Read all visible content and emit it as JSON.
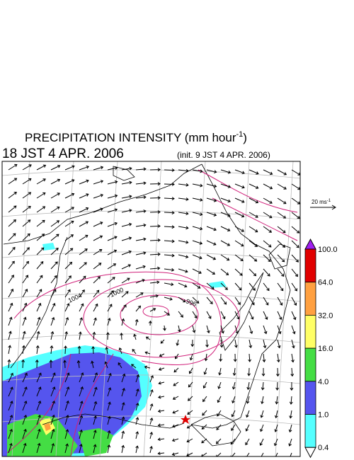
{
  "header": {
    "title": "PRECIPITATION INTENSITY (mm hour",
    "title_exp": "-1",
    "title_close": ")",
    "valid_time": "18 JST 4 APR. 2006",
    "init_time": "(init. 9 JST 4 APR. 2006)"
  },
  "wind_scale": {
    "label": "20 ms",
    "exp": "-1"
  },
  "isobars": {
    "labels": [
      "1004",
      "1000",
      "996"
    ]
  },
  "legend": {
    "levels": [
      "100.0",
      "64.0",
      "32.0",
      "16.0",
      "4.0",
      "1.0",
      "0.4"
    ],
    "over_color": "#a020f0",
    "under_color": "#ffffff",
    "colors": [
      "#e00000",
      "#ffa040",
      "#ffff66",
      "#44dd44",
      "#5555ee",
      "#55ffff"
    ]
  }
}
